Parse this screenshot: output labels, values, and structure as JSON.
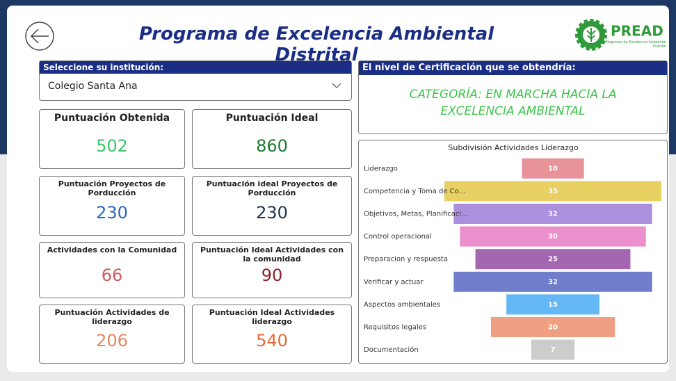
{
  "header": {
    "title": "Programa de Excelencia Ambiental Distrital",
    "logo_text": "PREAD",
    "logo_subtitle": "Programa de Excelencia Ambiental Distrital"
  },
  "filter": {
    "label": "Seleccione su institución:",
    "selected": "Colegio Santa Ana"
  },
  "cards": [
    {
      "title": "Puntuación Obtenida",
      "value": 502,
      "color": "#3dc46b"
    },
    {
      "title": "Puntuación Ideal",
      "value": 860,
      "color": "#1f7a33"
    },
    {
      "title": "Puntuación Proyectos de Porducción",
      "value": 230,
      "color": "#2a68b5"
    },
    {
      "title": "Puntuación ideal Proyectos de Porducción",
      "value": 230,
      "color": "#1e3550"
    },
    {
      "title": "Actividades con la Comunidad",
      "value": 66,
      "color": "#c95c5c"
    },
    {
      "title": "Puntuación Ideal Actividades con la comunidad",
      "value": 90,
      "color": "#8a1f2b"
    },
    {
      "title": "Puntuación Actividades de liderazgo",
      "value": 206,
      "color": "#e8855c"
    },
    {
      "title": "Puntuación Ideal Actividades liderazgo",
      "value": 540,
      "color": "#e86a3a"
    }
  ],
  "certification": {
    "label": "El nivel de Certificación que se obtendría:",
    "lines": [
      "CATEGORÍA: EN MARCHA HACIA LA",
      "EXCELENCIA AMBIENTAL"
    ]
  },
  "chart_data": {
    "type": "funnel",
    "title": "Subdivisión Actividades Liderazgo",
    "categories": [
      "Liderazgo",
      "Competencia y Toma de Co...",
      "Objetivos, Metas, Planificaci...",
      "Control operacional",
      "Preparacion y respuesta",
      "Verificar y actuar",
      "Aspectos ambientales",
      "Requisitos legales",
      "Documentación"
    ],
    "values": [
      10,
      35,
      32,
      30,
      25,
      32,
      15,
      20,
      7
    ],
    "colors": [
      "#e8929a",
      "#e8d062",
      "#aa90dd",
      "#eb90cc",
      "#a566b1",
      "#6f7dca",
      "#63b8f5",
      "#f0a082",
      "#cccccc"
    ]
  }
}
